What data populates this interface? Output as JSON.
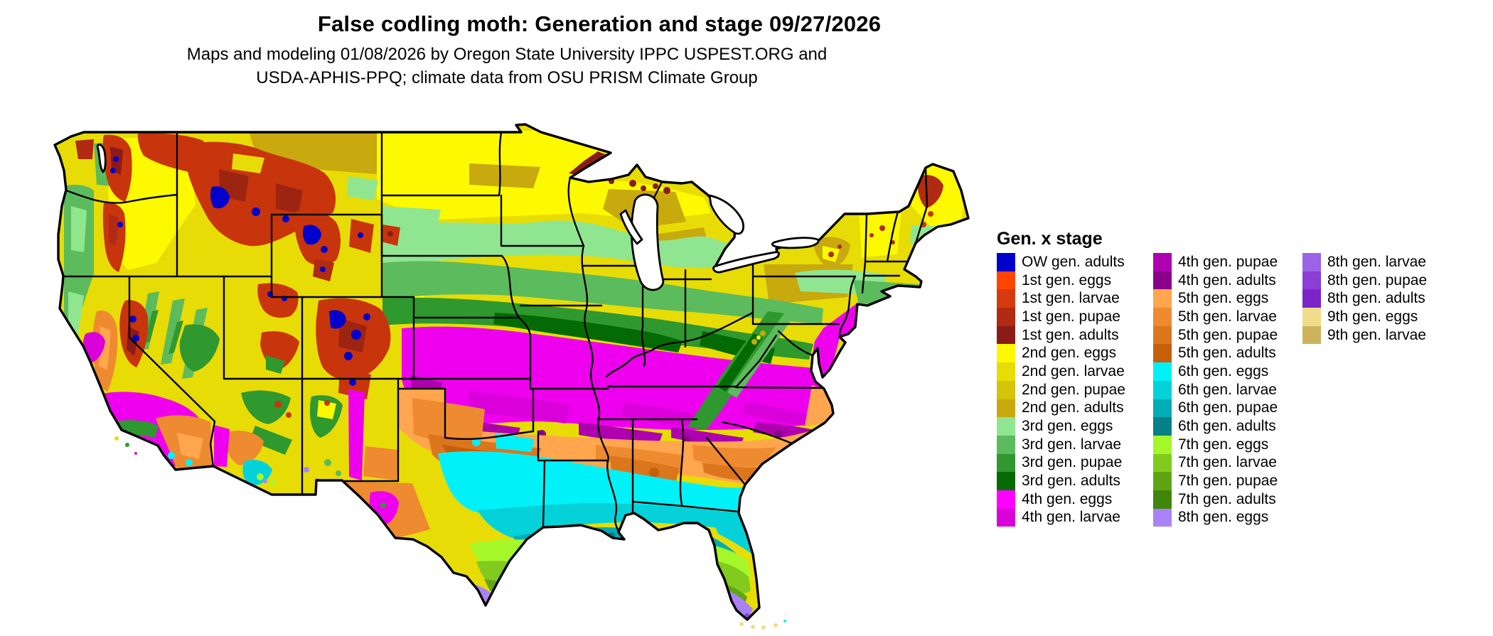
{
  "header": {
    "title": "False codling moth: Generation and stage 09/27/2026",
    "subtitle_line1": "Maps and modeling 01/08/2026 by Oregon State University IPPC USPEST.ORG and",
    "subtitle_line2": "USDA-APHIS-PPQ; climate data from OSU PRISM Climate Group"
  },
  "legend": {
    "title": "Gen. x stage",
    "columns": [
      [
        {
          "label": "OW gen. adults",
          "color": "#0000CD"
        },
        {
          "label": "1st gen. eggs",
          "color": "#FE4400"
        },
        {
          "label": "1st gen. larvae",
          "color": "#D63B10"
        },
        {
          "label": "1st gen. pupae",
          "color": "#B12A13"
        },
        {
          "label": "1st gen. adults",
          "color": "#8B1B17"
        },
        {
          "label": "2nd gen. eggs",
          "color": "#FDF900"
        },
        {
          "label": "2nd gen. larvae",
          "color": "#E7DC06"
        },
        {
          "label": "2nd gen. pupae",
          "color": "#D5C40A"
        },
        {
          "label": "2nd gen. adults",
          "color": "#C8A90E"
        },
        {
          "label": "3rd gen. eggs",
          "color": "#90E690"
        },
        {
          "label": "3rd gen. larvae",
          "color": "#5CBB5C"
        },
        {
          "label": "3rd gen. pupae",
          "color": "#2F982F"
        },
        {
          "label": "3rd gen. adults",
          "color": "#046B04"
        },
        {
          "label": "4th gen. eggs",
          "color": "#FE00FE"
        },
        {
          "label": "4th gen. larvae",
          "color": "#DA00DA"
        }
      ],
      [
        {
          "label": "4th gen. pupae",
          "color": "#AE00AE"
        },
        {
          "label": "4th gen. adults",
          "color": "#8B008B"
        },
        {
          "label": "5th gen. eggs",
          "color": "#FFA64E"
        },
        {
          "label": "5th gen. larvae",
          "color": "#EE8A30"
        },
        {
          "label": "5th gen. pupae",
          "color": "#DC761D"
        },
        {
          "label": "5th gen. adults",
          "color": "#C65F0A"
        },
        {
          "label": "6th gen. eggs",
          "color": "#00F2F8"
        },
        {
          "label": "6th gen. larvae",
          "color": "#04D2D8"
        },
        {
          "label": "6th gen. pupae",
          "color": "#00ACB5"
        },
        {
          "label": "6th gen. adults",
          "color": "#057F88"
        },
        {
          "label": "7th gen. eggs",
          "color": "#A5F729"
        },
        {
          "label": "7th gen. larvae",
          "color": "#83CA1E"
        },
        {
          "label": "7th gen. pupae",
          "color": "#60A414"
        },
        {
          "label": "7th gen. adults",
          "color": "#3F860B"
        },
        {
          "label": "8th gen. eggs",
          "color": "#A983F5"
        }
      ],
      [
        {
          "label": "8th gen. larvae",
          "color": "#9B63E8"
        },
        {
          "label": "8th gen. pupae",
          "color": "#8B3FD6"
        },
        {
          "label": "8th gen. adults",
          "color": "#7B24C9"
        },
        {
          "label": "9th gen. eggs",
          "color": "#EFDD8C"
        },
        {
          "label": "9th gen. larvae",
          "color": "#CDB45C"
        }
      ]
    ]
  },
  "map": {
    "outline_color": "#000000",
    "water_color": "#FFFFFF"
  }
}
